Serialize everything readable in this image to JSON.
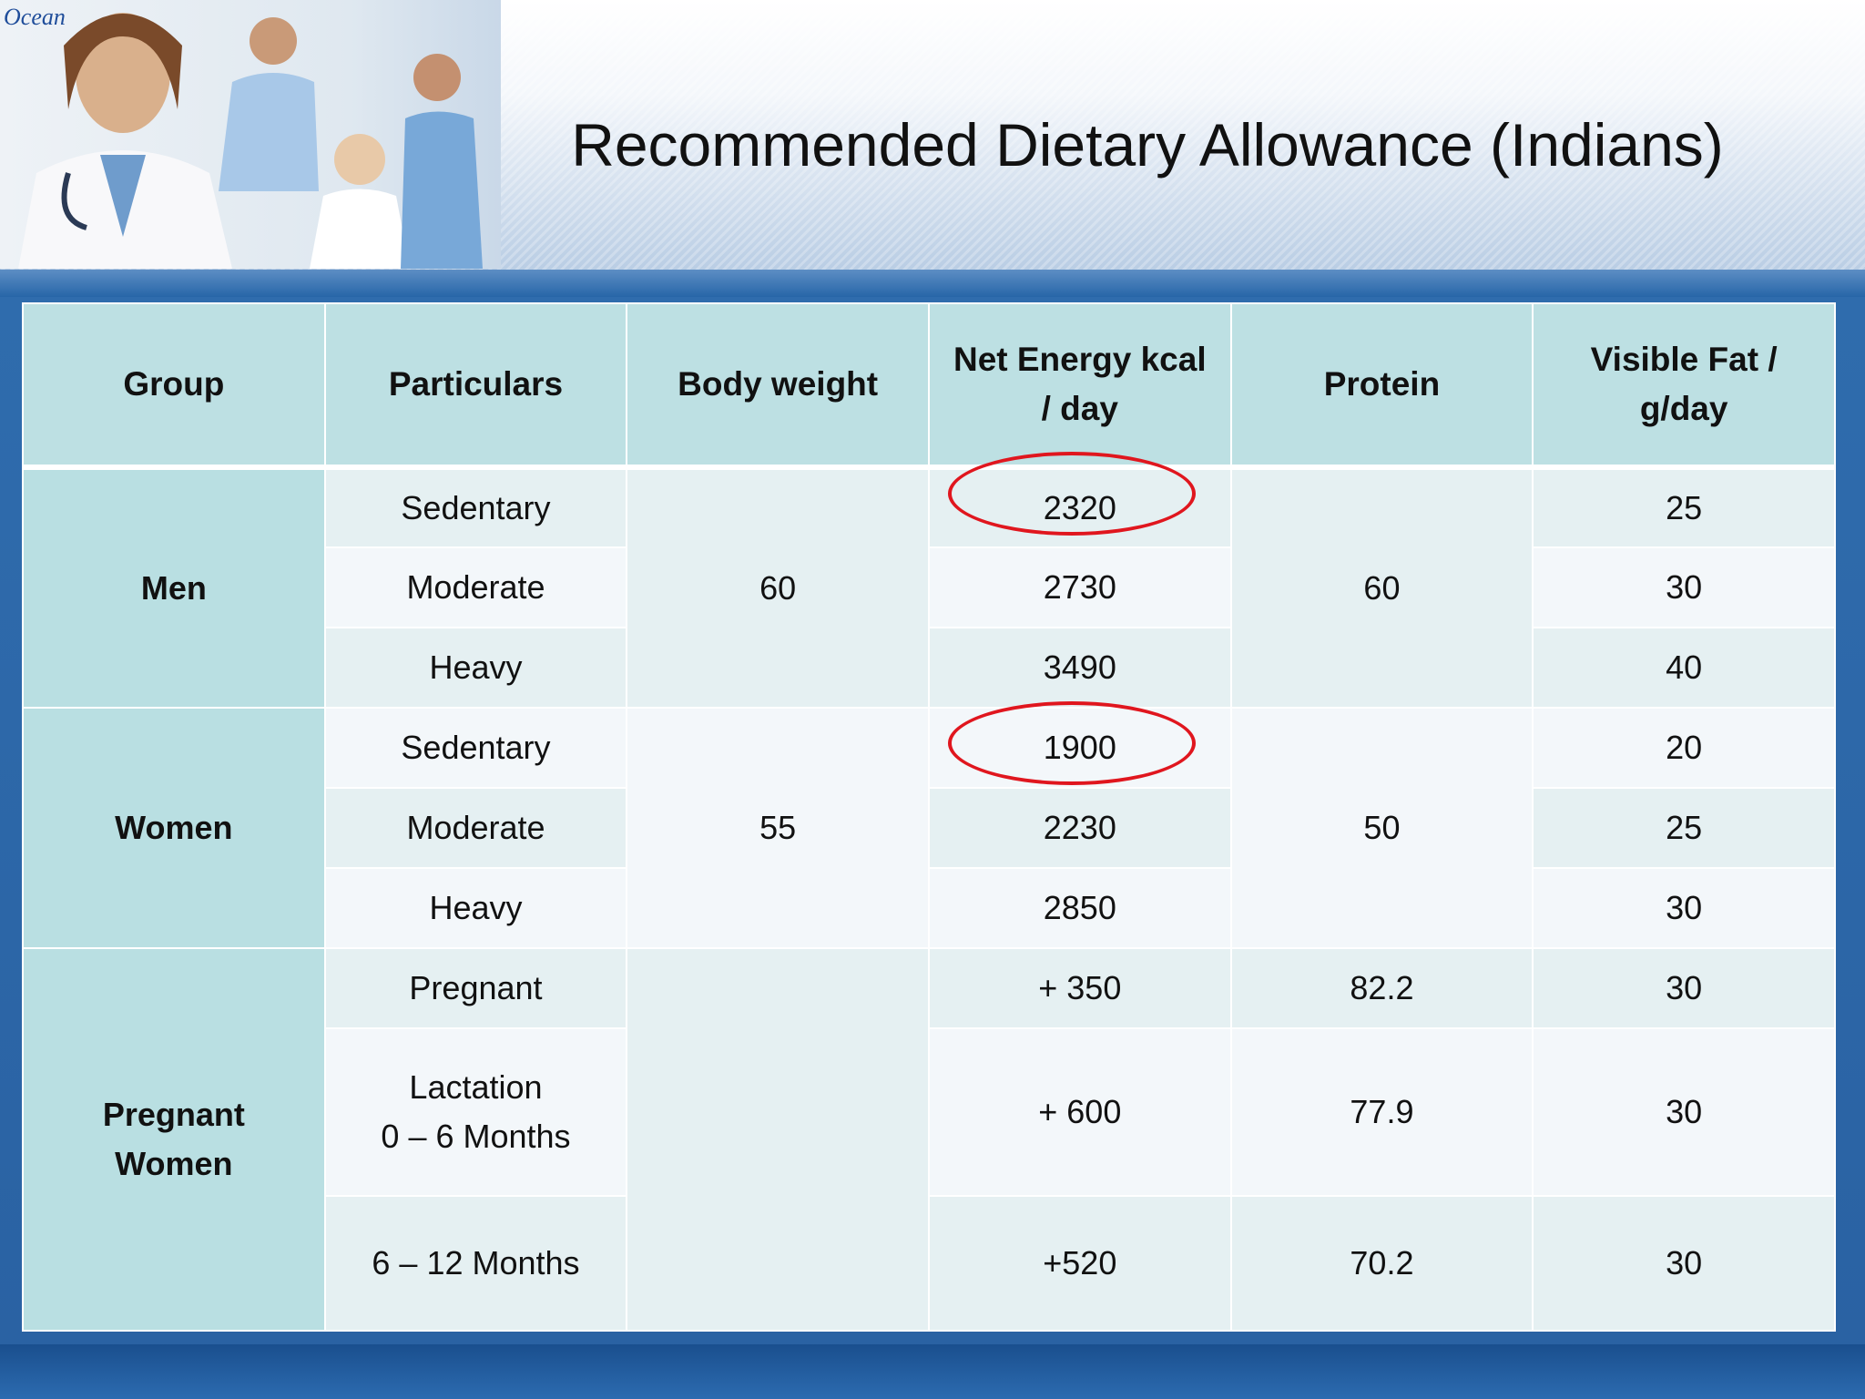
{
  "header": {
    "logo": "Ocean",
    "title": "Recommended Dietary Allowance (Indians)"
  },
  "table": {
    "columns": [
      "Group",
      "Particulars",
      "Body weight",
      "Net Energy kcal\n/ day",
      "Protein",
      "Visible Fat /\ng/day"
    ],
    "groups": [
      {
        "name": "Men",
        "body_weight": "60",
        "protein": "60",
        "rows": [
          {
            "particulars": "Sedentary",
            "energy": "2320",
            "fat": "25"
          },
          {
            "particulars": "Moderate",
            "energy": "2730",
            "fat": "30"
          },
          {
            "particulars": "Heavy",
            "energy": "3490",
            "fat": "40"
          }
        ]
      },
      {
        "name": "Women",
        "body_weight": "55",
        "protein": "50",
        "rows": [
          {
            "particulars": "Sedentary",
            "energy": "1900",
            "fat": "20"
          },
          {
            "particulars": "Moderate",
            "energy": "2230",
            "fat": "25"
          },
          {
            "particulars": "Heavy",
            "energy": "2850",
            "fat": "30"
          }
        ]
      },
      {
        "name": "Pregnant\nWomen",
        "rows": [
          {
            "particulars": "Pregnant",
            "energy": "+ 350",
            "protein": "82.2",
            "fat": "30"
          },
          {
            "particulars": "Lactation\n0 – 6 Months",
            "energy": "+ 600",
            "protein": "77.9",
            "fat": "30"
          },
          {
            "particulars": "6 – 12 Months",
            "energy": "+520",
            "protein": "70.2",
            "fat": "30"
          }
        ]
      }
    ]
  }
}
